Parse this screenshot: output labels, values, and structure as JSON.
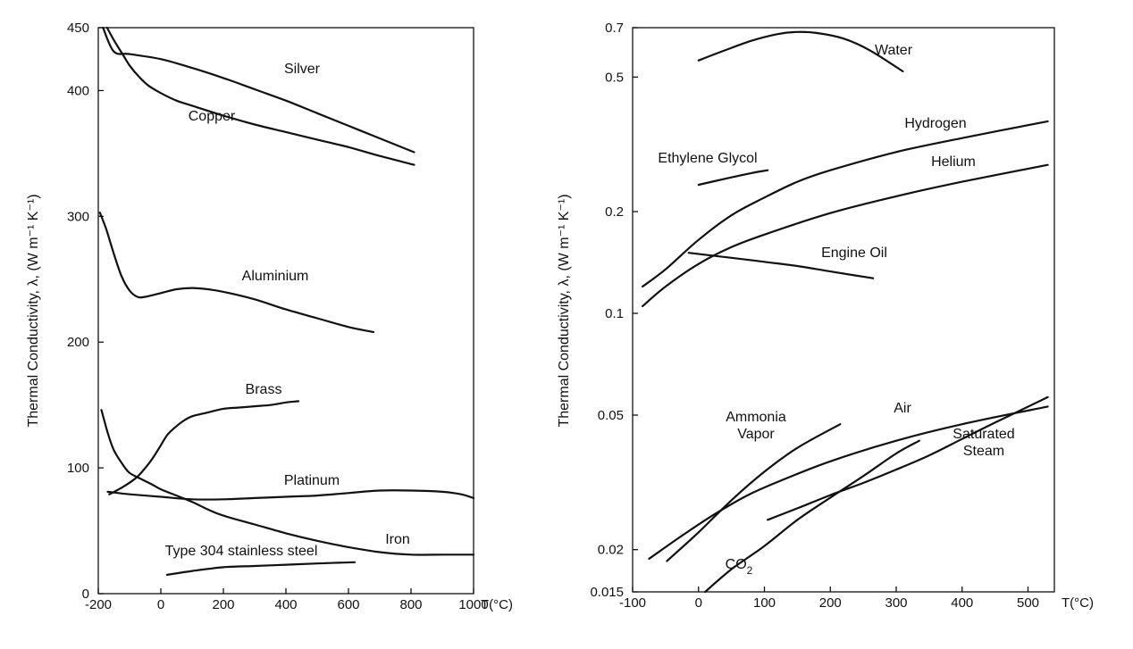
{
  "chart_data": [
    {
      "type": "line",
      "ylabel": "Thermal Conductivity, λ, (W m⁻¹ K⁻¹)",
      "xlabel": "T(°C)",
      "xlim": [
        -200,
        1000
      ],
      "ylim": [
        0,
        450
      ],
      "x_ticks": [
        -200,
        0,
        200,
        400,
        600,
        800,
        1000
      ],
      "y_ticks": [
        0,
        100,
        200,
        300,
        400,
        450
      ],
      "grid": false,
      "series": [
        {
          "name": "Silver",
          "x": [
            -185,
            -150,
            -100,
            0,
            100,
            200,
            300,
            400,
            500,
            600,
            700,
            810
          ],
          "y": [
            450,
            431,
            429,
            425,
            418,
            410,
            401,
            392,
            382,
            372,
            362,
            351
          ]
        },
        {
          "name": "Copper",
          "x": [
            -172,
            -150,
            -120,
            -100,
            -70,
            -40,
            0,
            50,
            100,
            200,
            300,
            400,
            500,
            600,
            700,
            810
          ],
          "y": [
            450,
            440,
            428,
            420,
            411,
            404,
            398,
            392,
            388,
            380,
            373,
            367,
            361,
            355,
            348,
            341
          ]
        },
        {
          "name": "Aluminium",
          "x": [
            -195,
            -175,
            -150,
            -125,
            -100,
            -75,
            -50,
            0,
            50,
            100,
            150,
            200,
            300,
            400,
            500,
            600,
            680
          ],
          "y": [
            303,
            290,
            270,
            252,
            241,
            236,
            236,
            239,
            242,
            243,
            242,
            240,
            234,
            226,
            219,
            212,
            208
          ]
        },
        {
          "name": "Brass",
          "x": [
            -165,
            -120,
            -75,
            -40,
            -20,
            0,
            20,
            40,
            70,
            100,
            150,
            200,
            250,
            300,
            350,
            400,
            440
          ],
          "y": [
            79,
            85,
            93,
            103,
            110,
            118,
            126,
            131,
            137,
            141,
            144,
            147,
            148,
            149,
            150,
            152,
            153
          ]
        },
        {
          "name": "Platinum",
          "x": [
            -170,
            -100,
            0,
            100,
            200,
            300,
            400,
            500,
            600,
            700,
            800,
            900,
            960,
            1000
          ],
          "y": [
            81,
            79,
            77,
            75,
            75,
            76,
            77,
            78,
            80,
            82,
            82,
            81,
            79,
            76
          ]
        },
        {
          "name": "Iron",
          "x": [
            -190,
            -170,
            -150,
            -120,
            -100,
            -70,
            -30,
            0,
            50,
            100,
            150,
            200,
            300,
            400,
            500,
            600,
            700,
            800,
            900,
            1000
          ],
          "y": [
            146,
            128,
            114,
            102,
            96,
            92,
            87,
            83,
            78,
            73,
            67,
            62,
            55,
            48,
            42,
            37,
            33,
            31,
            31,
            31
          ]
        },
        {
          "name": "Type 304 stainless steel",
          "x": [
            20,
            100,
            200,
            300,
            400,
            500,
            620
          ],
          "y": [
            15,
            18,
            21,
            22,
            23,
            24,
            25
          ]
        }
      ]
    },
    {
      "type": "line",
      "ylabel": "Thermal Conductivity, λ, (W m⁻¹ K⁻¹)",
      "xlabel": "T(°C)",
      "xlim": [
        -100,
        540
      ],
      "ylim": [
        0.015,
        0.7
      ],
      "y_scale": "log",
      "x_ticks": [
        -100,
        0,
        100,
        200,
        300,
        400,
        500
      ],
      "y_ticks": [
        0.015,
        0.02,
        0.05,
        0.1,
        0.2,
        0.5,
        0.7
      ],
      "grid": false,
      "series": [
        {
          "name": "Water",
          "x": [
            0,
            40,
            80,
            120,
            150,
            180,
            220,
            260,
            310
          ],
          "y": [
            0.56,
            0.6,
            0.64,
            0.67,
            0.68,
            0.675,
            0.65,
            0.6,
            0.52
          ]
        },
        {
          "name": "Hydrogen",
          "x": [
            -85,
            -50,
            0,
            50,
            100,
            150,
            200,
            300,
            400,
            530
          ],
          "y": [
            0.12,
            0.135,
            0.165,
            0.195,
            0.22,
            0.245,
            0.265,
            0.3,
            0.33,
            0.37
          ]
        },
        {
          "name": "Helium",
          "x": [
            -85,
            -50,
            0,
            50,
            100,
            200,
            300,
            400,
            530
          ],
          "y": [
            0.105,
            0.12,
            0.14,
            0.157,
            0.171,
            0.198,
            0.222,
            0.245,
            0.275
          ]
        },
        {
          "name": "Ethylene Glycol",
          "x": [
            0,
            40,
            80,
            105
          ],
          "y": [
            0.24,
            0.25,
            0.26,
            0.265
          ]
        },
        {
          "name": "Engine Oil",
          "x": [
            -15,
            50,
            100,
            150,
            200,
            265
          ],
          "y": [
            0.151,
            0.146,
            0.142,
            0.138,
            0.133,
            0.127
          ]
        },
        {
          "name": "Ammonia Vapor",
          "x": [
            -48,
            0,
            50,
            100,
            150,
            215
          ],
          "y": [
            0.0185,
            0.0225,
            0.028,
            0.034,
            0.04,
            0.047
          ]
        },
        {
          "name": "Air",
          "x": [
            -75,
            -25,
            25,
            75,
            125,
            200,
            300,
            400,
            530
          ],
          "y": [
            0.0188,
            0.022,
            0.0255,
            0.029,
            0.032,
            0.0365,
            0.042,
            0.047,
            0.053
          ]
        },
        {
          "name": "Saturated Steam",
          "x": [
            105,
            150,
            200,
            250,
            300,
            350,
            400,
            450,
            530
          ],
          "y": [
            0.0245,
            0.0265,
            0.029,
            0.0315,
            0.0345,
            0.038,
            0.0425,
            0.0475,
            0.0565
          ]
        },
        {
          "name": "CO₂",
          "x": [
            10,
            50,
            100,
            150,
            200,
            250,
            300,
            335
          ],
          "y": [
            0.015,
            0.0175,
            0.0205,
            0.0245,
            0.0285,
            0.033,
            0.0385,
            0.042
          ]
        }
      ]
    }
  ]
}
